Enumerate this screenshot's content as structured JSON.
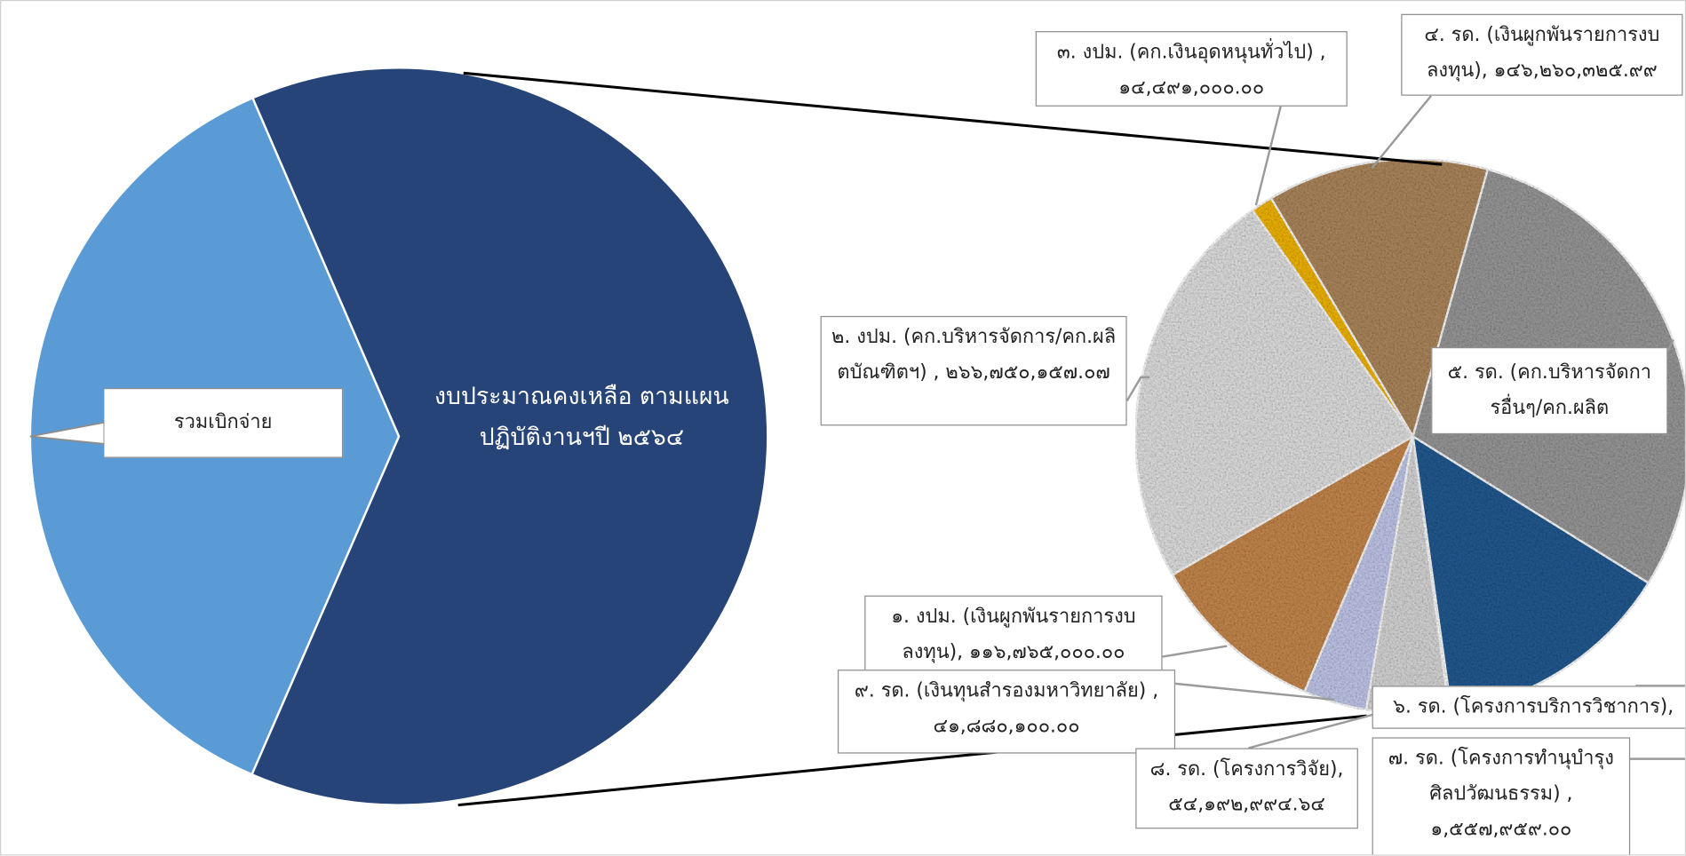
{
  "chart_data": [
    {
      "type": "pie",
      "categories": [
        "รวมเบิกจ่าย",
        "งบประมาณคงเหลือ ตามแผนปฏิบัติงานฯปี ๒๕๖๔"
      ],
      "values": [
        666000000,
        1134897536.7
      ],
      "colors": [
        "#5b9bd5",
        "#264478"
      ]
    },
    {
      "type": "pie",
      "categories": [
        "๑. งปม. (เงินผูกพันรายการงบลงทุน),",
        "๒. งปม. (คก.บริหารจัดการ/คก.ผลิตบัณฑิตฯ) ,",
        "๓. งปม. (คก.เงินอุดหนุนทั่วไป) ,",
        "๔. รด. (เงินผูกพันรายการงบลงทุน),",
        "๕. รด. (คก.บริหารจัดการอื่นๆ/คก.ผลิต",
        "๖. รด. (โครงการบริการวิชาการ),",
        "๗. รด. (โครงการทำนุบำรุงศิลปวัฒนธรรม) ,",
        "๘. รด. (โครงการวิจัย),",
        "๙. รด. (เงินทุนสำรองมหาวิทยาลัย) ,"
      ],
      "values": [
        116765000.0,
        266750157.07,
        14491000.0,
        146260325.99,
        335000000,
        158000000,
        1557959.0,
        54192994.64,
        41880100.0
      ],
      "value_labels": [
        "๑๑๖,๗๖๕,๐๐๐.๐๐",
        "๒๖๖,๗๕๐,๑๕๗.๐๗",
        "๑๔,๔๙๑,๐๐๐.๐๐",
        "๑๔๖,๒๖๐,๓๒๕.๙๙",
        null,
        null,
        "๑,๕๕๗,๙๕๙.๐๐",
        "๕๔,๑๙๒,๙๙๔.๖๔",
        "๔๑,๘๘๐,๑๐๐.๐๐"
      ],
      "colors": [
        "#c98a4e",
        "#e4e4e4",
        "#f5b800",
        "#b08a5e",
        "#9b9b9b",
        "#245c94",
        "#ececec",
        "#dadada",
        "#c5cbee"
      ]
    }
  ]
}
